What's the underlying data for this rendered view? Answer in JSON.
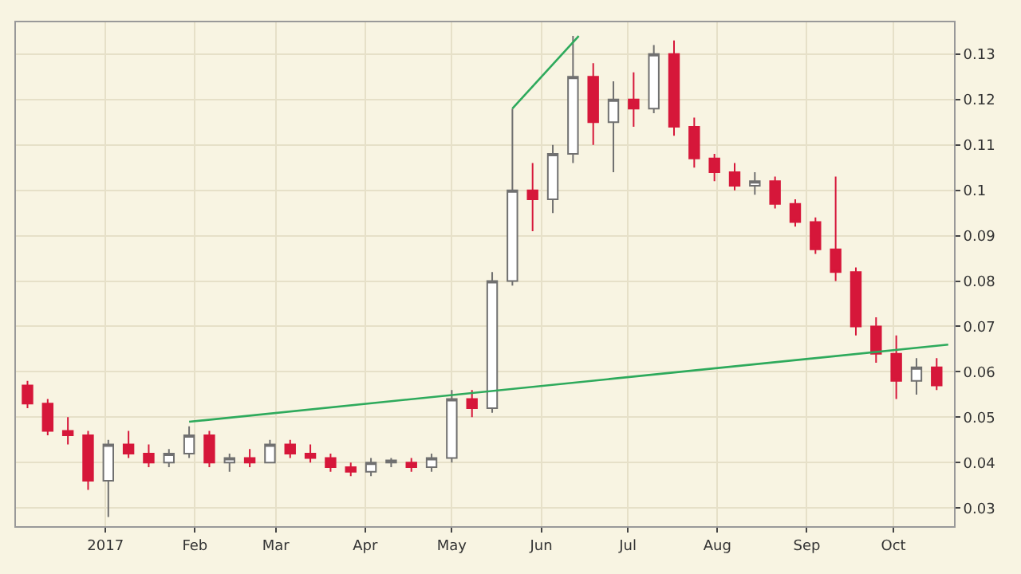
{
  "chart_data": {
    "type": "candlestick",
    "x": [
      "2016-12-05",
      "2016-12-12",
      "2016-12-19",
      "2016-12-26",
      "2017-01-02",
      "2017-01-09",
      "2017-01-16",
      "2017-01-23",
      "2017-01-30",
      "2017-02-06",
      "2017-02-13",
      "2017-02-20",
      "2017-02-27",
      "2017-03-06",
      "2017-03-13",
      "2017-03-20",
      "2017-03-27",
      "2017-04-03",
      "2017-04-10",
      "2017-04-17",
      "2017-04-24",
      "2017-05-01",
      "2017-05-08",
      "2017-05-15",
      "2017-05-22",
      "2017-05-29",
      "2017-06-05",
      "2017-06-12",
      "2017-06-19",
      "2017-06-26",
      "2017-07-03",
      "2017-07-10",
      "2017-07-17",
      "2017-07-24",
      "2017-07-31",
      "2017-08-07",
      "2017-08-14",
      "2017-08-21",
      "2017-08-28",
      "2017-09-04",
      "2017-09-11",
      "2017-09-18",
      "2017-09-25",
      "2017-10-02",
      "2017-10-09",
      "2017-10-16"
    ],
    "ohlc": [
      [
        0.057,
        0.058,
        0.052,
        0.053
      ],
      [
        0.053,
        0.054,
        0.046,
        0.047
      ],
      [
        0.047,
        0.05,
        0.044,
        0.046
      ],
      [
        0.046,
        0.047,
        0.034,
        0.036
      ],
      [
        0.036,
        0.045,
        0.028,
        0.044
      ],
      [
        0.044,
        0.047,
        0.041,
        0.042
      ],
      [
        0.042,
        0.044,
        0.039,
        0.04
      ],
      [
        0.04,
        0.043,
        0.039,
        0.042
      ],
      [
        0.042,
        0.048,
        0.041,
        0.046
      ],
      [
        0.046,
        0.047,
        0.039,
        0.04
      ],
      [
        0.04,
        0.042,
        0.038,
        0.041
      ],
      [
        0.041,
        0.043,
        0.039,
        0.04
      ],
      [
        0.04,
        0.045,
        0.04,
        0.044
      ],
      [
        0.044,
        0.045,
        0.041,
        0.042
      ],
      [
        0.042,
        0.044,
        0.04,
        0.041
      ],
      [
        0.041,
        0.042,
        0.038,
        0.039
      ],
      [
        0.039,
        0.04,
        0.037,
        0.038
      ],
      [
        0.038,
        0.041,
        0.037,
        0.04
      ],
      [
        0.04,
        0.041,
        0.039,
        0.0405
      ],
      [
        0.04,
        0.041,
        0.038,
        0.039
      ],
      [
        0.039,
        0.042,
        0.038,
        0.041
      ],
      [
        0.041,
        0.056,
        0.04,
        0.054
      ],
      [
        0.054,
        0.056,
        0.05,
        0.052
      ],
      [
        0.052,
        0.082,
        0.051,
        0.08
      ],
      [
        0.08,
        0.118,
        0.079,
        0.1
      ],
      [
        0.1,
        0.106,
        0.091,
        0.098
      ],
      [
        0.098,
        0.11,
        0.095,
        0.108
      ],
      [
        0.108,
        0.134,
        0.106,
        0.125
      ],
      [
        0.125,
        0.128,
        0.11,
        0.115
      ],
      [
        0.115,
        0.124,
        0.104,
        0.12
      ],
      [
        0.12,
        0.126,
        0.114,
        0.118
      ],
      [
        0.118,
        0.132,
        0.117,
        0.13
      ],
      [
        0.13,
        0.133,
        0.112,
        0.114
      ],
      [
        0.114,
        0.116,
        0.105,
        0.107
      ],
      [
        0.107,
        0.108,
        0.102,
        0.104
      ],
      [
        0.104,
        0.106,
        0.1,
        0.101
      ],
      [
        0.101,
        0.104,
        0.099,
        0.102
      ],
      [
        0.102,
        0.103,
        0.096,
        0.097
      ],
      [
        0.097,
        0.098,
        0.092,
        0.093
      ],
      [
        0.093,
        0.094,
        0.086,
        0.087
      ],
      [
        0.087,
        0.103,
        0.08,
        0.082
      ],
      [
        0.082,
        0.083,
        0.068,
        0.07
      ],
      [
        0.07,
        0.072,
        0.062,
        0.064
      ],
      [
        0.064,
        0.068,
        0.054,
        0.058
      ],
      [
        0.058,
        0.063,
        0.055,
        0.061
      ],
      [
        0.061,
        0.063,
        0.056,
        0.057
      ]
    ],
    "series": [
      {
        "type": "line",
        "color": "#2eaa5c",
        "x": [
          "2017-01-30",
          "2017-10-20"
        ],
        "values": [
          0.049,
          0.066
        ]
      },
      {
        "type": "line",
        "color": "#2eaa5c",
        "x": [
          "2017-05-22",
          "2017-06-14"
        ],
        "values": [
          0.118,
          0.134
        ]
      }
    ],
    "xlim": [
      "2016-12-01",
      "2017-10-22"
    ],
    "xticks": [
      {
        "value": "2017-01-01",
        "label": "2017"
      },
      {
        "value": "2017-02-01",
        "label": "Feb"
      },
      {
        "value": "2017-03-01",
        "label": "Mar"
      },
      {
        "value": "2017-04-01",
        "label": "Apr"
      },
      {
        "value": "2017-05-01",
        "label": "May"
      },
      {
        "value": "2017-06-01",
        "label": "Jun"
      },
      {
        "value": "2017-07-01",
        "label": "Jul"
      },
      {
        "value": "2017-08-01",
        "label": "Aug"
      },
      {
        "value": "2017-09-01",
        "label": "Sep"
      },
      {
        "value": "2017-10-01",
        "label": "Oct"
      }
    ],
    "ylim": [
      0.026,
      0.137
    ],
    "yticks": [
      0.03,
      0.04,
      0.05,
      0.06,
      0.07,
      0.08,
      0.09,
      0.1,
      0.11,
      0.12,
      0.13
    ],
    "grid": true
  }
}
